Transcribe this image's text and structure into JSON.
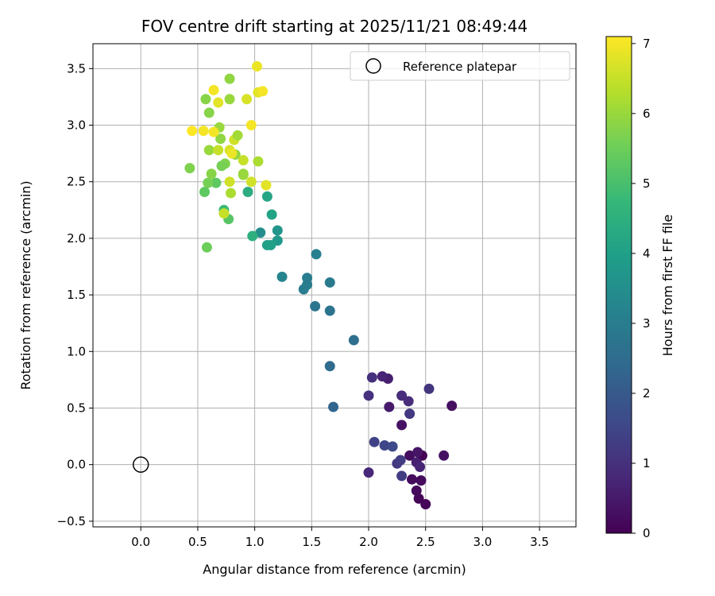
{
  "chart_data": {
    "type": "scatter",
    "title": "FOV centre drift starting at 2025/11/21 08:49:44",
    "xlabel": "Angular distance from reference (arcmin)",
    "ylabel": "Rotation from reference (arcmin)",
    "xlim": [
      -0.42,
      3.82
    ],
    "ylim": [
      -0.55,
      3.72
    ],
    "xticks": [
      "0.0",
      "0.5",
      "1.0",
      "1.5",
      "2.0",
      "2.5",
      "3.0",
      "3.5"
    ],
    "xtick_values": [
      0,
      0.5,
      1.0,
      1.5,
      2.0,
      2.5,
      3.0,
      3.5
    ],
    "yticks": [
      "−0.5",
      "0.0",
      "0.5",
      "1.0",
      "1.5",
      "2.0",
      "2.5",
      "3.0",
      "3.5"
    ],
    "ytick_values": [
      -0.5,
      0,
      0.5,
      1.0,
      1.5,
      2.0,
      2.5,
      3.0,
      3.5
    ],
    "grid": true,
    "legend_position": "top-right",
    "reference": {
      "label": "Reference platepar",
      "x": 0.0,
      "y": 0.0,
      "marker": "open-circle"
    },
    "colorbar": {
      "label": "Hours from first FF file",
      "min": 0,
      "max": 7.1,
      "ticks": [
        "0",
        "1",
        "2",
        "3",
        "4",
        "5",
        "6",
        "7"
      ],
      "tick_values": [
        0,
        1,
        2,
        3,
        4,
        5,
        6,
        7
      ],
      "colormap": "viridis",
      "colors": [
        "#440154",
        "#482878",
        "#3e4989",
        "#31688e",
        "#26828e",
        "#1f9e89",
        "#35b779",
        "#6ece58",
        "#b5de2b",
        "#fde725"
      ]
    },
    "points": [
      {
        "x": 2.47,
        "y": 0.08,
        "t": 0.0
      },
      {
        "x": 2.5,
        "y": -0.35,
        "t": 0.1
      },
      {
        "x": 2.44,
        "y": -0.3,
        "t": 0.1
      },
      {
        "x": 2.42,
        "y": -0.23,
        "t": 0.15
      },
      {
        "x": 2.38,
        "y": -0.13,
        "t": 0.2
      },
      {
        "x": 2.46,
        "y": -0.14,
        "t": 0.2
      },
      {
        "x": 2.36,
        "y": 0.08,
        "t": 0.25
      },
      {
        "x": 2.66,
        "y": 0.08,
        "t": 0.3
      },
      {
        "x": 2.73,
        "y": 0.52,
        "t": 0.3
      },
      {
        "x": 2.29,
        "y": 0.35,
        "t": 0.35
      },
      {
        "x": 2.43,
        "y": 0.11,
        "t": 0.4
      },
      {
        "x": 2.18,
        "y": 0.51,
        "t": 0.5
      },
      {
        "x": 2.17,
        "y": 0.76,
        "t": 0.6
      },
      {
        "x": 2.12,
        "y": 0.78,
        "t": 0.7
      },
      {
        "x": 2.42,
        "y": 0.02,
        "t": 0.6
      },
      {
        "x": 2.45,
        "y": -0.02,
        "t": 0.7
      },
      {
        "x": 2.0,
        "y": -0.07,
        "t": 0.8
      },
      {
        "x": 2.29,
        "y": 0.61,
        "t": 0.9
      },
      {
        "x": 2.35,
        "y": 0.56,
        "t": 0.9
      },
      {
        "x": 2.03,
        "y": 0.77,
        "t": 1.0
      },
      {
        "x": 2.0,
        "y": 0.61,
        "t": 1.0
      },
      {
        "x": 2.53,
        "y": 0.67,
        "t": 1.1
      },
      {
        "x": 2.36,
        "y": 0.45,
        "t": 1.2
      },
      {
        "x": 2.25,
        "y": 0.01,
        "t": 1.2
      },
      {
        "x": 2.29,
        "y": -0.1,
        "t": 1.3
      },
      {
        "x": 2.28,
        "y": 0.04,
        "t": 1.3
      },
      {
        "x": 2.05,
        "y": 0.2,
        "t": 1.4
      },
      {
        "x": 2.14,
        "y": 0.17,
        "t": 1.5
      },
      {
        "x": 2.21,
        "y": 0.16,
        "t": 1.6
      },
      {
        "x": 1.69,
        "y": 0.51,
        "t": 2.3
      },
      {
        "x": 1.66,
        "y": 0.87,
        "t": 2.5
      },
      {
        "x": 1.87,
        "y": 1.1,
        "t": 2.6
      },
      {
        "x": 1.66,
        "y": 1.36,
        "t": 2.7
      },
      {
        "x": 1.53,
        "y": 1.4,
        "t": 2.8
      },
      {
        "x": 1.66,
        "y": 1.61,
        "t": 2.9
      },
      {
        "x": 1.43,
        "y": 1.55,
        "t": 3.0
      },
      {
        "x": 1.46,
        "y": 1.59,
        "t": 3.0
      },
      {
        "x": 1.46,
        "y": 1.65,
        "t": 3.0
      },
      {
        "x": 1.54,
        "y": 1.86,
        "t": 3.1
      },
      {
        "x": 1.24,
        "y": 1.66,
        "t": 3.2
      },
      {
        "x": 1.05,
        "y": 2.05,
        "t": 3.5
      },
      {
        "x": 1.2,
        "y": 2.07,
        "t": 3.7
      },
      {
        "x": 1.2,
        "y": 1.98,
        "t": 3.8
      },
      {
        "x": 1.11,
        "y": 1.94,
        "t": 4.0
      },
      {
        "x": 1.14,
        "y": 1.94,
        "t": 4.0
      },
      {
        "x": 1.15,
        "y": 2.21,
        "t": 4.1
      },
      {
        "x": 1.11,
        "y": 2.37,
        "t": 4.2
      },
      {
        "x": 0.98,
        "y": 2.02,
        "t": 4.5
      },
      {
        "x": 0.94,
        "y": 2.41,
        "t": 4.4
      },
      {
        "x": 0.73,
        "y": 2.25,
        "t": 4.8
      },
      {
        "x": 0.77,
        "y": 2.17,
        "t": 5.2
      },
      {
        "x": 0.58,
        "y": 1.92,
        "t": 5.5
      },
      {
        "x": 0.56,
        "y": 2.41,
        "t": 5.3
      },
      {
        "x": 0.66,
        "y": 2.49,
        "t": 5.3
      },
      {
        "x": 0.59,
        "y": 2.49,
        "t": 5.6
      },
      {
        "x": 0.62,
        "y": 2.57,
        "t": 5.8
      },
      {
        "x": 0.74,
        "y": 2.66,
        "t": 5.7
      },
      {
        "x": 0.71,
        "y": 2.64,
        "t": 5.6
      },
      {
        "x": 0.43,
        "y": 2.62,
        "t": 5.7
      },
      {
        "x": 0.83,
        "y": 2.74,
        "t": 5.9
      },
      {
        "x": 0.79,
        "y": 2.4,
        "t": 6.2
      },
      {
        "x": 0.9,
        "y": 2.56,
        "t": 6.0
      },
      {
        "x": 0.9,
        "y": 2.57,
        "t": 6.0
      },
      {
        "x": 0.97,
        "y": 2.5,
        "t": 6.6
      },
      {
        "x": 1.03,
        "y": 2.68,
        "t": 6.2
      },
      {
        "x": 1.1,
        "y": 2.47,
        "t": 6.8
      },
      {
        "x": 0.73,
        "y": 2.22,
        "t": 6.5
      },
      {
        "x": 0.78,
        "y": 2.5,
        "t": 6.6
      },
      {
        "x": 0.7,
        "y": 2.88,
        "t": 5.9
      },
      {
        "x": 0.6,
        "y": 2.78,
        "t": 6.0
      },
      {
        "x": 0.68,
        "y": 2.78,
        "t": 6.5
      },
      {
        "x": 0.78,
        "y": 2.78,
        "t": 6.7
      },
      {
        "x": 0.8,
        "y": 2.75,
        "t": 6.9
      },
      {
        "x": 0.82,
        "y": 2.87,
        "t": 6.6
      },
      {
        "x": 0.85,
        "y": 2.91,
        "t": 6.1
      },
      {
        "x": 0.9,
        "y": 2.69,
        "t": 6.5
      },
      {
        "x": 0.69,
        "y": 2.98,
        "t": 6.0
      },
      {
        "x": 0.64,
        "y": 2.94,
        "t": 7.0
      },
      {
        "x": 0.55,
        "y": 2.95,
        "t": 7.0
      },
      {
        "x": 0.45,
        "y": 2.95,
        "t": 7.1
      },
      {
        "x": 0.97,
        "y": 3.0,
        "t": 7.0
      },
      {
        "x": 0.6,
        "y": 3.11,
        "t": 5.8
      },
      {
        "x": 0.57,
        "y": 3.23,
        "t": 5.8
      },
      {
        "x": 0.68,
        "y": 3.2,
        "t": 6.8
      },
      {
        "x": 0.64,
        "y": 3.31,
        "t": 7.0
      },
      {
        "x": 0.78,
        "y": 3.23,
        "t": 6.0
      },
      {
        "x": 0.78,
        "y": 3.41,
        "t": 5.9
      },
      {
        "x": 0.93,
        "y": 3.23,
        "t": 6.7
      },
      {
        "x": 1.03,
        "y": 3.29,
        "t": 6.8
      },
      {
        "x": 1.07,
        "y": 3.3,
        "t": 7.0
      },
      {
        "x": 1.02,
        "y": 3.52,
        "t": 6.9
      }
    ]
  }
}
